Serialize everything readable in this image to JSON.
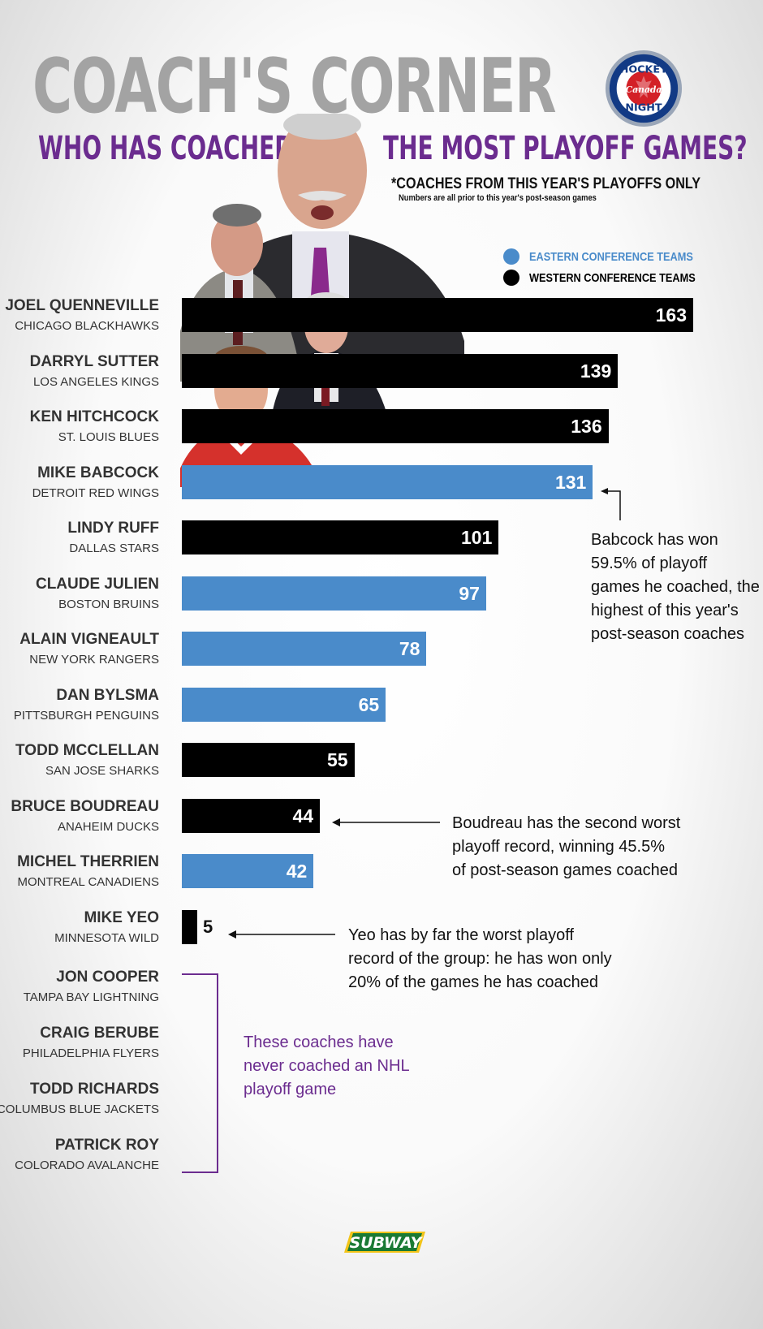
{
  "header": {
    "title": "COACH'S CORNER",
    "subtitle_left": "WHO HAS COACHED",
    "subtitle_right": "THE MOST PLAYOFF GAMES?",
    "note": "*COACHES FROM THIS YEAR'S PLAYOFFS ONLY",
    "subnote": "Numbers are all prior to this year's post-season games",
    "logo_text": "HOCKEY NIGHT in Canada"
  },
  "legend": {
    "eastern": "EASTERN CONFERENCE TEAMS",
    "western": "WESTERN CONFERENCE TEAMS"
  },
  "colors": {
    "eastern": "#4a8bca",
    "western": "#000000",
    "accent": "#6b2c8f"
  },
  "chart_data": {
    "type": "bar",
    "orientation": "horizontal",
    "categories": [
      "JOEL QUENNEVILLE",
      "DARRYL SUTTER",
      "KEN HITCHCOCK",
      "MIKE BABCOCK",
      "LINDY RUFF",
      "CLAUDE JULIEN",
      "ALAIN VIGNEAULT",
      "DAN BYLSMA",
      "TODD MCCLELLAN",
      "BRUCE BOUDREAU",
      "MICHEL THERRIEN",
      "MIKE YEO"
    ],
    "teams": [
      "CHICAGO BLACKHAWKS",
      "LOS ANGELES KINGS",
      "ST. LOUIS BLUES",
      "DETROIT RED WINGS",
      "DALLAS STARS",
      "BOSTON BRUINS",
      "NEW YORK RANGERS",
      "PITTSBURGH PENGUINS",
      "SAN JOSE SHARKS",
      "ANAHEIM DUCKS",
      "MONTREAL CANADIENS",
      "MINNESOTA WILD"
    ],
    "values": [
      163,
      139,
      136,
      131,
      101,
      97,
      78,
      65,
      55,
      44,
      42,
      5
    ],
    "conference": [
      "western",
      "western",
      "western",
      "eastern",
      "western",
      "eastern",
      "eastern",
      "eastern",
      "western",
      "western",
      "eastern",
      "western"
    ],
    "xlim": [
      0,
      163
    ],
    "grid": false,
    "legend_position": "top-right"
  },
  "no_playoff_coaches": [
    {
      "name": "JON COOPER",
      "team": "TAMPA BAY LIGHTNING"
    },
    {
      "name": "CRAIG BERUBE",
      "team": "PHILADELPHIA FLYERS"
    },
    {
      "name": "TODD RICHARDS",
      "team": "COLUMBUS BLUE JACKETS"
    },
    {
      "name": "PATRICK ROY",
      "team": "COLORADO AVALANCHE"
    }
  ],
  "annotations": {
    "babcock": [
      "Babcock has won",
      "59.5% of playoff",
      "games he coached, the",
      "highest of this year's",
      "post-season coaches"
    ],
    "boudreau": [
      "Boudreau has the second worst",
      "playoff record, winning 45.5%",
      "of post-season games coached"
    ],
    "yeo": [
      "Yeo has by far the worst playoff",
      "record of the group: he has won only",
      "20% of the games he has coached"
    ],
    "never": [
      "These coaches have",
      "never coached an NHL",
      "playoff game"
    ]
  },
  "sponsor": "SUBWAY"
}
